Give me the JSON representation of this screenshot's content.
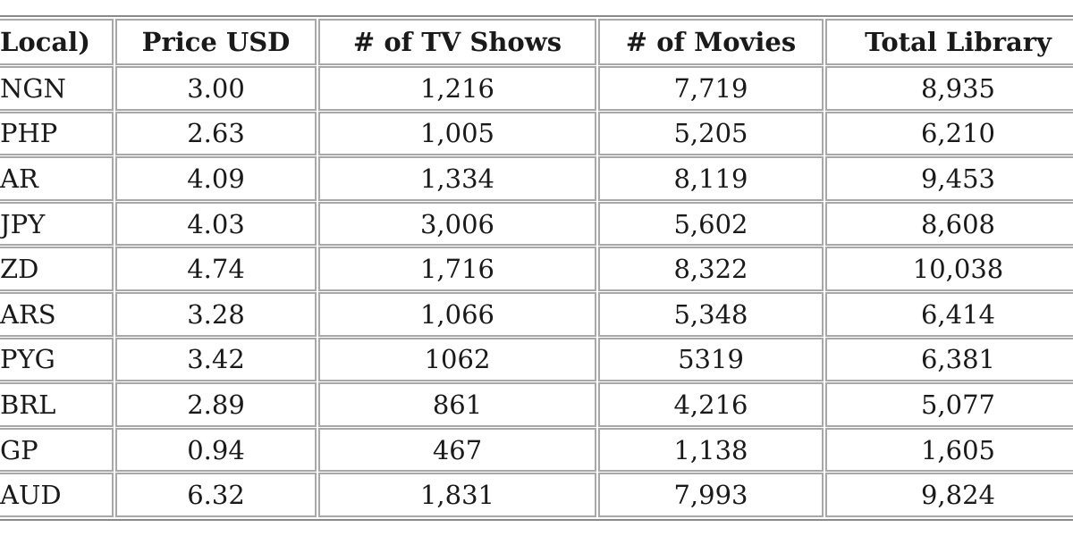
{
  "table": {
    "header": [
      "Local)",
      "Price USD",
      "# of TV Shows",
      "# of Movies",
      "Total Library"
    ],
    "rows": [
      [
        "NGN",
        "3.00",
        "1,216",
        "7,719",
        "8,935"
      ],
      [
        "PHP",
        "2.63",
        "1,005",
        "5,205",
        "6,210"
      ],
      [
        "AR",
        "4.09",
        "1,334",
        "8,119",
        "9,453"
      ],
      [
        "JPY",
        "4.03",
        "3,006",
        "5,602",
        "8,608"
      ],
      [
        "ZD",
        "4.74",
        "1,716",
        "8,322",
        "10,038"
      ],
      [
        "ARS",
        "3.28",
        "1,066",
        "5,348",
        "6,414"
      ],
      [
        "PYG",
        "3.42",
        "1062",
        "5319",
        "6,381"
      ],
      [
        "BRL",
        "2.89",
        "861",
        "4,216",
        "5,077"
      ],
      [
        "GP",
        "0.94",
        "467",
        "1,138",
        "1,605"
      ],
      [
        "AUD",
        "6.32",
        "1,831",
        "7,993",
        "9,824"
      ]
    ]
  }
}
